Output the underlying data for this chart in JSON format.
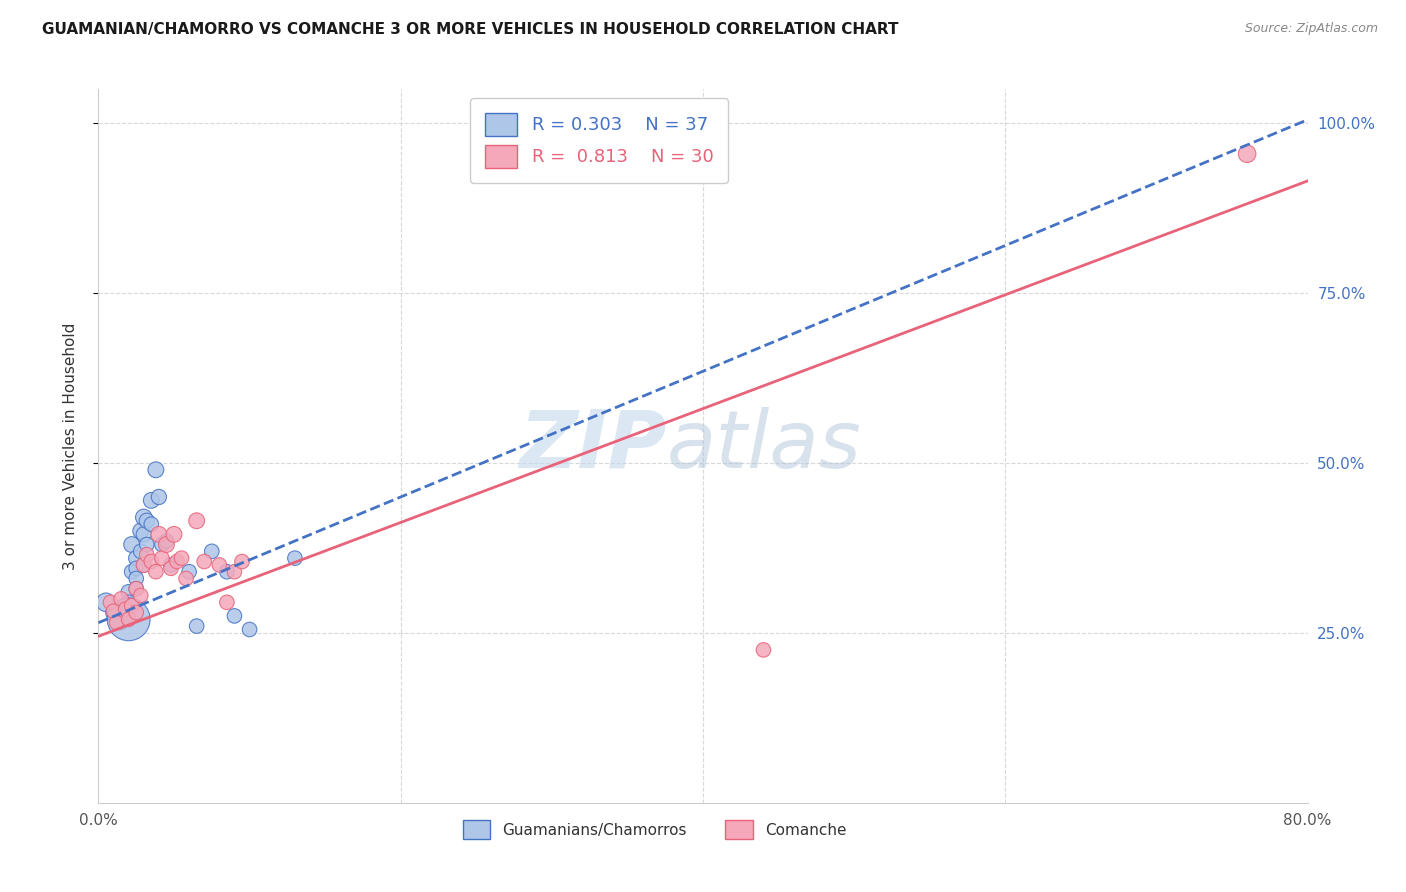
{
  "title": "GUAMANIAN/CHAMORRO VS COMANCHE 3 OR MORE VEHICLES IN HOUSEHOLD CORRELATION CHART",
  "source": "Source: ZipAtlas.com",
  "ylabel": "3 or more Vehicles in Household",
  "xlim": [
    0.0,
    0.8
  ],
  "ylim": [
    0.0,
    1.05
  ],
  "xticks": [
    0.0,
    0.2,
    0.4,
    0.6,
    0.8
  ],
  "xtick_labels": [
    "0.0%",
    "",
    "",
    "",
    "80.0%"
  ],
  "ytick_labels": [
    "25.0%",
    "50.0%",
    "75.0%",
    "100.0%"
  ],
  "yticks": [
    0.25,
    0.5,
    0.75,
    1.0
  ],
  "background_color": "#ffffff",
  "grid_color": "#d8d8d8",
  "blue_line_color": "#4472c4",
  "pink_line_color": "#e8637a",
  "blue_scatter_color": "#aec6e8",
  "pink_scatter_color": "#f4a8ba",
  "watermark_zip_color": "#c5d8ee",
  "watermark_atlas_color": "#a8c0d8",
  "blue_x": [
    0.005,
    0.01,
    0.012,
    0.015,
    0.015,
    0.018,
    0.018,
    0.02,
    0.02,
    0.02,
    0.022,
    0.022,
    0.025,
    0.025,
    0.025,
    0.025,
    0.028,
    0.028,
    0.03,
    0.03,
    0.03,
    0.032,
    0.032,
    0.035,
    0.035,
    0.038,
    0.04,
    0.042,
    0.045,
    0.048,
    0.06,
    0.065,
    0.075,
    0.085,
    0.09,
    0.1,
    0.13
  ],
  "blue_y": [
    0.295,
    0.28,
    0.27,
    0.285,
    0.265,
    0.29,
    0.275,
    0.31,
    0.295,
    0.27,
    0.38,
    0.34,
    0.36,
    0.345,
    0.33,
    0.315,
    0.4,
    0.37,
    0.42,
    0.395,
    0.35,
    0.415,
    0.38,
    0.445,
    0.41,
    0.49,
    0.45,
    0.38,
    0.385,
    0.35,
    0.34,
    0.26,
    0.37,
    0.34,
    0.275,
    0.255,
    0.36
  ],
  "blue_sizes": [
    180,
    130,
    120,
    120,
    110,
    110,
    110,
    120,
    110,
    950,
    130,
    110,
    120,
    110,
    110,
    110,
    130,
    110,
    140,
    120,
    110,
    120,
    110,
    130,
    110,
    130,
    120,
    110,
    110,
    110,
    110,
    110,
    110,
    110,
    110,
    110,
    110
  ],
  "pink_x": [
    0.008,
    0.01,
    0.012,
    0.015,
    0.018,
    0.02,
    0.022,
    0.025,
    0.025,
    0.028,
    0.03,
    0.032,
    0.035,
    0.038,
    0.04,
    0.042,
    0.045,
    0.048,
    0.05,
    0.052,
    0.055,
    0.058,
    0.065,
    0.07,
    0.08,
    0.085,
    0.09,
    0.095,
    0.44,
    0.76
  ],
  "pink_y": [
    0.295,
    0.282,
    0.265,
    0.3,
    0.285,
    0.27,
    0.29,
    0.315,
    0.28,
    0.305,
    0.35,
    0.365,
    0.355,
    0.34,
    0.395,
    0.36,
    0.38,
    0.345,
    0.395,
    0.355,
    0.36,
    0.33,
    0.415,
    0.355,
    0.35,
    0.295,
    0.34,
    0.355,
    0.225,
    0.955
  ],
  "pink_sizes": [
    110,
    110,
    110,
    110,
    110,
    110,
    110,
    110,
    110,
    110,
    120,
    110,
    110,
    110,
    130,
    110,
    130,
    110,
    130,
    110,
    110,
    110,
    130,
    110,
    110,
    110,
    110,
    110,
    110,
    160
  ],
  "blue_line_x0": 0.0,
  "blue_line_x1": 0.8,
  "blue_line_y0": 0.265,
  "blue_line_y1": 1.005,
  "pink_line_x0": 0.0,
  "pink_line_x1": 0.8,
  "pink_line_y0": 0.245,
  "pink_line_y1": 0.915
}
